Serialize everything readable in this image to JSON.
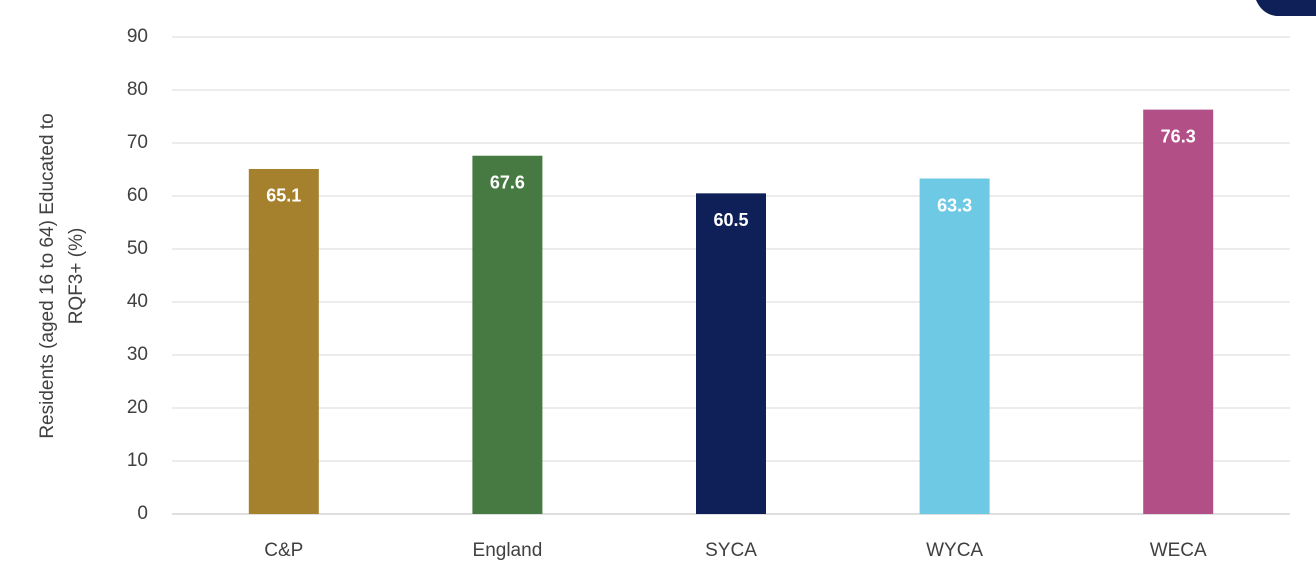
{
  "chart_data": {
    "type": "bar",
    "y_label": [
      "Residents (aged 16 to 64) Educated to",
      "RQF3+ (%)"
    ],
    "categories": [
      "C&P",
      "England",
      "SYCA",
      "WYCA",
      "WECA"
    ],
    "values": [
      65.1,
      67.6,
      60.5,
      63.3,
      76.3
    ],
    "colors": [
      "#a5802d",
      "#477a42",
      "#0f1f57",
      "#6ec9e4",
      "#b24f86"
    ],
    "ylim": [
      0,
      90
    ],
    "yticks": [
      0,
      10,
      20,
      30,
      40,
      50,
      60,
      70,
      80,
      90
    ],
    "grid": true
  }
}
